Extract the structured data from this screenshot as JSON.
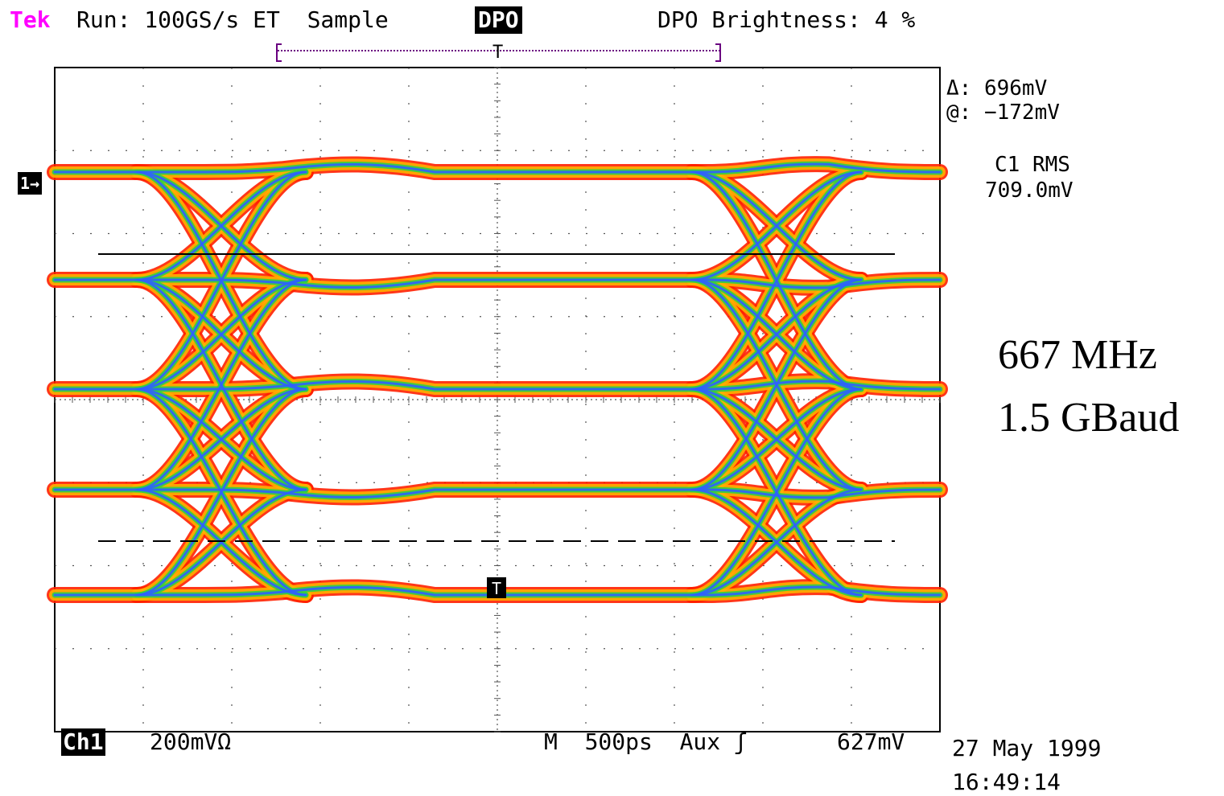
{
  "header": {
    "brand": "Tek",
    "run_status": "Run: 100GS/s ET  Sample",
    "mode_badge": "DPO",
    "brightness": "DPO Brightness: 4 %"
  },
  "channel_marker": "1→",
  "trigger_marker": "T",
  "measurements": {
    "delta": "Δ: 696mV",
    "at": "@: −172mV",
    "rms_label": "C1 RMS",
    "rms_value": "709.0mV"
  },
  "annotation": {
    "line1": "667 MHz",
    "line2": "1.5 GBaud"
  },
  "footer": {
    "channel": "Ch1",
    "volts_per_div": "200mVΩ",
    "timebase": "M  500ps  Aux ʃ",
    "trigger_level": "627mV",
    "date": "27 May 1999",
    "time": "16:49:14"
  },
  "colors": {
    "brand": "#ff00ff",
    "trace_outer": "#ff2000",
    "trace_mid": "#ffb000",
    "trace_inner": "#30d040",
    "trace_core": "#3060ff"
  },
  "chart_data": {
    "type": "eye-diagram",
    "grid": true,
    "divisions_x": 10,
    "divisions_y": 8,
    "levels": 4,
    "eye_crossings": 2
  }
}
